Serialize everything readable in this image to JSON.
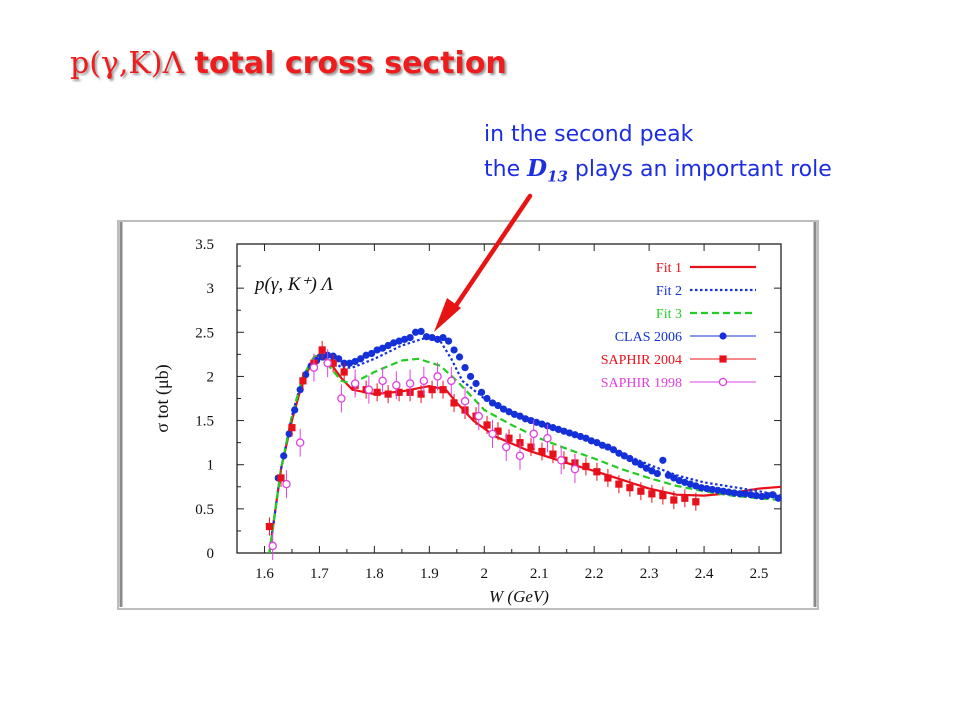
{
  "slide": {
    "title_reaction": "p(γ,K)Λ",
    "title_rest": " total cross section",
    "annotation_line1": "in the second peak",
    "annotation_line2_pre": "the ",
    "annotation_d": "D",
    "annotation_d_sub": "13",
    "annotation_line2_post": " plays an important role"
  },
  "chart_data": {
    "type": "line",
    "title": "",
    "inset_label": "p(γ, K⁺) Λ",
    "xlabel": "W (GeV)",
    "ylabel": "σ tot (μb)",
    "xlim": [
      1.55,
      2.54
    ],
    "ylim": [
      0,
      3.5
    ],
    "xticks": [
      1.6,
      1.7,
      1.8,
      1.9,
      2,
      2.1,
      2.2,
      2.3,
      2.4,
      2.5
    ],
    "yticks": [
      0,
      0.5,
      1,
      1.5,
      2,
      2.5,
      3,
      3.5
    ],
    "legend_position": "top-right",
    "colors": {
      "fit1": "#e8101a",
      "fit2": "#1430d8",
      "fit3": "#22cc22",
      "clas": "#1430d8",
      "saphir2004": "#e8101a",
      "saphir1998": "#e040e0",
      "arrow": "#e81414"
    },
    "series": [
      {
        "name": "Fit 1",
        "kind": "line",
        "style": "solid",
        "color": "#e8101a",
        "x": [
          1.609,
          1.63,
          1.65,
          1.67,
          1.69,
          1.7,
          1.72,
          1.74,
          1.76,
          1.8,
          1.85,
          1.9,
          1.93,
          1.95,
          1.98,
          2.02,
          2.08,
          2.15,
          2.2,
          2.25,
          2.3,
          2.35,
          2.4,
          2.45,
          2.5,
          2.54
        ],
        "y": [
          0,
          0.95,
          1.5,
          1.95,
          2.2,
          2.25,
          2.15,
          1.98,
          1.85,
          1.8,
          1.83,
          1.89,
          1.85,
          1.7,
          1.5,
          1.32,
          1.16,
          1.02,
          0.93,
          0.83,
          0.73,
          0.66,
          0.65,
          0.68,
          0.73,
          0.75
        ]
      },
      {
        "name": "Fit 2",
        "kind": "line",
        "style": "dotted",
        "color": "#1430d8",
        "x": [
          1.609,
          1.63,
          1.65,
          1.67,
          1.69,
          1.7,
          1.72,
          1.74,
          1.76,
          1.8,
          1.85,
          1.9,
          1.92,
          1.94,
          1.96,
          2.0,
          2.05,
          2.1,
          2.15,
          2.2,
          2.25,
          2.3,
          2.35,
          2.4,
          2.45,
          2.5,
          2.54
        ],
        "y": [
          0,
          0.95,
          1.55,
          2.0,
          2.2,
          2.25,
          2.2,
          2.1,
          2.1,
          2.2,
          2.35,
          2.45,
          2.4,
          2.2,
          1.95,
          1.75,
          1.6,
          1.47,
          1.37,
          1.25,
          1.13,
          1.0,
          0.88,
          0.8,
          0.75,
          0.7,
          0.65
        ]
      },
      {
        "name": "Fit 3",
        "kind": "line",
        "style": "dashed",
        "color": "#22cc22",
        "x": [
          1.609,
          1.63,
          1.65,
          1.67,
          1.69,
          1.7,
          1.72,
          1.74,
          1.76,
          1.8,
          1.85,
          1.88,
          1.92,
          1.95,
          2.0,
          2.05,
          2.1,
          2.15,
          2.2,
          2.25,
          2.3,
          2.35,
          2.4,
          2.45,
          2.5,
          2.54
        ],
        "y": [
          0,
          0.95,
          1.55,
          2.0,
          2.22,
          2.25,
          2.1,
          1.95,
          1.92,
          2.05,
          2.18,
          2.2,
          2.12,
          1.95,
          1.62,
          1.45,
          1.3,
          1.18,
          1.07,
          0.95,
          0.85,
          0.76,
          0.7,
          0.65,
          0.62,
          0.6
        ]
      },
      {
        "name": "CLAS 2006",
        "kind": "points",
        "marker": "circle",
        "color": "#1430d8",
        "x": [
          1.625,
          1.635,
          1.645,
          1.655,
          1.665,
          1.675,
          1.685,
          1.695,
          1.705,
          1.715,
          1.725,
          1.735,
          1.745,
          1.755,
          1.765,
          1.775,
          1.785,
          1.795,
          1.805,
          1.815,
          1.825,
          1.835,
          1.845,
          1.855,
          1.865,
          1.875,
          1.885,
          1.895,
          1.905,
          1.915,
          1.925,
          1.935,
          1.945,
          1.955,
          1.965,
          1.975,
          1.985,
          1.995,
          2.005,
          2.015,
          2.025,
          2.035,
          2.045,
          2.055,
          2.065,
          2.075,
          2.085,
          2.095,
          2.105,
          2.115,
          2.125,
          2.135,
          2.145,
          2.155,
          2.165,
          2.175,
          2.185,
          2.195,
          2.205,
          2.215,
          2.225,
          2.235,
          2.245,
          2.255,
          2.265,
          2.275,
          2.285,
          2.295,
          2.305,
          2.315,
          2.325,
          2.335,
          2.345,
          2.355,
          2.365,
          2.375,
          2.385,
          2.395,
          2.405,
          2.415,
          2.425,
          2.435,
          2.445,
          2.455,
          2.465,
          2.475,
          2.485,
          2.495,
          2.505,
          2.515,
          2.525,
          2.535
        ],
        "y": [
          0.85,
          1.1,
          1.35,
          1.62,
          1.85,
          2.02,
          2.12,
          2.18,
          2.22,
          2.24,
          2.23,
          2.2,
          2.15,
          2.15,
          2.17,
          2.2,
          2.24,
          2.26,
          2.3,
          2.32,
          2.35,
          2.38,
          2.4,
          2.42,
          2.44,
          2.5,
          2.51,
          2.45,
          2.44,
          2.42,
          2.44,
          2.4,
          2.3,
          2.22,
          2.1,
          2.0,
          1.92,
          1.82,
          1.75,
          1.7,
          1.67,
          1.63,
          1.6,
          1.57,
          1.55,
          1.52,
          1.5,
          1.48,
          1.46,
          1.44,
          1.42,
          1.4,
          1.38,
          1.36,
          1.34,
          1.32,
          1.3,
          1.27,
          1.25,
          1.22,
          1.2,
          1.17,
          1.13,
          1.1,
          1.07,
          1.03,
          1.0,
          0.96,
          0.93,
          0.9,
          1.05,
          0.88,
          0.85,
          0.82,
          0.8,
          0.78,
          0.76,
          0.74,
          0.73,
          0.72,
          0.71,
          0.7,
          0.69,
          0.68,
          0.67,
          0.67,
          0.66,
          0.65,
          0.64,
          0.65,
          0.66,
          0.62
        ]
      },
      {
        "name": "SAPHIR 2004",
        "kind": "points",
        "marker": "square",
        "color": "#e8101a",
        "x": [
          1.609,
          1.63,
          1.65,
          1.67,
          1.69,
          1.705,
          1.725,
          1.745,
          1.765,
          1.785,
          1.805,
          1.825,
          1.845,
          1.865,
          1.885,
          1.905,
          1.925,
          1.945,
          1.965,
          1.985,
          2.005,
          2.025,
          2.045,
          2.065,
          2.085,
          2.105,
          2.125,
          2.145,
          2.165,
          2.185,
          2.205,
          2.225,
          2.245,
          2.265,
          2.285,
          2.305,
          2.325,
          2.345,
          2.365,
          2.385
        ],
        "y": [
          0.3,
          0.85,
          1.42,
          1.95,
          2.15,
          2.3,
          2.15,
          2.05,
          1.9,
          1.85,
          1.82,
          1.8,
          1.82,
          1.82,
          1.8,
          1.85,
          1.85,
          1.7,
          1.62,
          1.55,
          1.45,
          1.38,
          1.3,
          1.25,
          1.2,
          1.15,
          1.12,
          1.05,
          1.02,
          0.98,
          0.92,
          0.85,
          0.78,
          0.74,
          0.7,
          0.67,
          0.65,
          0.6,
          0.62,
          0.58
        ]
      },
      {
        "name": "SAPHIR 1998",
        "kind": "points",
        "marker": "open-circle",
        "color": "#e040e0",
        "x": [
          1.615,
          1.64,
          1.665,
          1.69,
          1.715,
          1.74,
          1.765,
          1.79,
          1.815,
          1.84,
          1.865,
          1.89,
          1.915,
          1.94,
          1.965,
          1.99,
          2.015,
          2.04,
          2.065,
          2.09,
          2.115,
          2.14,
          2.165
        ],
        "y": [
          0.08,
          0.78,
          1.25,
          2.1,
          2.15,
          1.75,
          1.92,
          1.85,
          1.95,
          1.9,
          1.92,
          1.95,
          2.0,
          1.95,
          1.72,
          1.55,
          1.35,
          1.2,
          1.1,
          1.35,
          1.3,
          1.05,
          0.95
        ]
      }
    ]
  }
}
